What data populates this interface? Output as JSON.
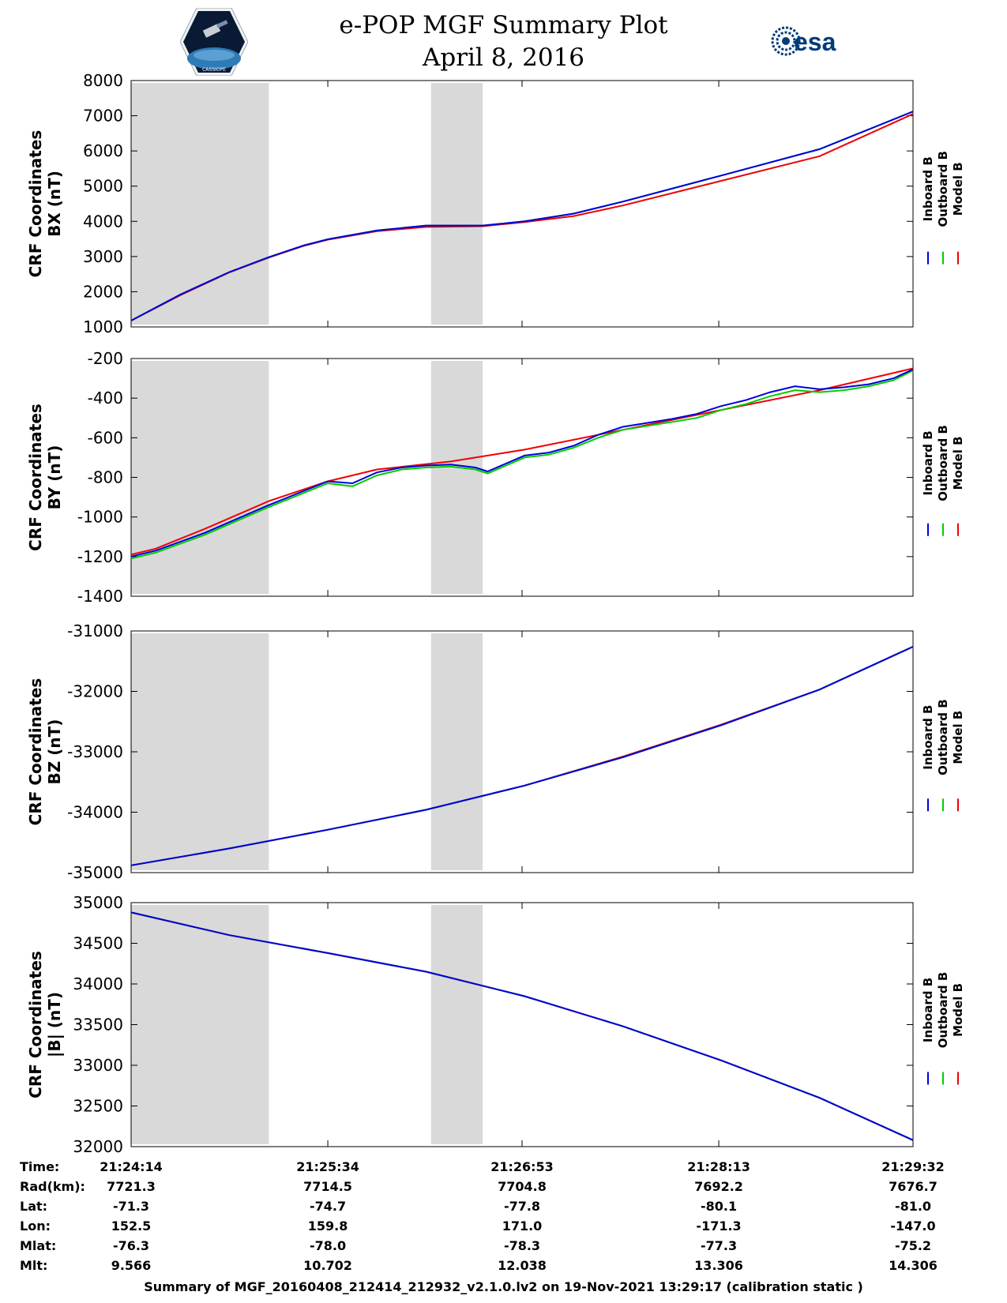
{
  "header": {
    "title": "e-POP MGF Summary Plot",
    "date": "April 8, 2016",
    "esa_logo_text": "esa",
    "mission_logo_text": "CASSIOPE"
  },
  "colors": {
    "inboard": "#0000dd",
    "outboard": "#00cc00",
    "model": "#ee0000",
    "shade": "#d9d9d9"
  },
  "legend": [
    "Inboard B",
    "Outboard B",
    "Model B"
  ],
  "chart_data": [
    {
      "type": "line",
      "ylabel_line1": "CRF Coordinates",
      "ylabel_line2": "BX (nT)",
      "ylim": [
        1000,
        8000
      ],
      "yticks": [
        "1000",
        "2000",
        "3000",
        "4000",
        "5000",
        "6000",
        "7000",
        "8000"
      ],
      "shaded_time_ranges_s": [
        [
          0,
          56
        ],
        [
          122,
          143
        ]
      ],
      "series": [
        {
          "name": "Model B",
          "t": [
            0,
            20,
            40,
            56,
            70,
            80,
            100,
            120,
            143,
            160,
            180,
            200,
            240,
            280,
            318
          ],
          "values": [
            1180,
            1900,
            2550,
            2970,
            3300,
            3480,
            3720,
            3840,
            3860,
            3980,
            4150,
            4450,
            5150,
            5850,
            7050
          ]
        },
        {
          "name": "Outboard B",
          "t": [
            0,
            20,
            40,
            56,
            70,
            80,
            100,
            120,
            143,
            160,
            180,
            200,
            240,
            280,
            318
          ],
          "values": [
            1180,
            1920,
            2560,
            2980,
            3310,
            3490,
            3740,
            3880,
            3880,
            4000,
            4220,
            4560,
            5300,
            6050,
            7120
          ]
        },
        {
          "name": "Inboard B",
          "t": [
            0,
            20,
            40,
            56,
            70,
            80,
            100,
            120,
            143,
            160,
            180,
            200,
            240,
            280,
            318
          ],
          "values": [
            1180,
            1920,
            2560,
            2980,
            3310,
            3490,
            3740,
            3880,
            3880,
            4000,
            4220,
            4560,
            5300,
            6050,
            7120
          ]
        }
      ]
    },
    {
      "type": "line",
      "ylabel_line1": "CRF Coordinates",
      "ylabel_line2": "BY (nT)",
      "ylim": [
        -1400,
        -200
      ],
      "yticks": [
        "-1400",
        "-1200",
        "-1000",
        "-800",
        "-600",
        "-400",
        "-200"
      ],
      "shaded_time_ranges_s": [
        [
          0,
          56
        ],
        [
          122,
          143
        ]
      ],
      "series": [
        {
          "name": "Model B",
          "t": [
            0,
            10,
            30,
            56,
            80,
            100,
            130,
            160,
            200,
            240,
            280,
            318
          ],
          "values": [
            -1190,
            -1160,
            -1060,
            -920,
            -820,
            -760,
            -720,
            -660,
            -560,
            -460,
            -360,
            -250
          ]
        },
        {
          "name": "Outboard B",
          "t": [
            0,
            10,
            30,
            56,
            80,
            90,
            100,
            110,
            120,
            130,
            140,
            145,
            160,
            170,
            180,
            190,
            200,
            210,
            220,
            230,
            240,
            250,
            260,
            270,
            280,
            290,
            300,
            310,
            318
          ],
          "values": [
            -1210,
            -1180,
            -1090,
            -950,
            -830,
            -845,
            -790,
            -760,
            -750,
            -745,
            -760,
            -780,
            -700,
            -685,
            -650,
            -600,
            -560,
            -540,
            -520,
            -500,
            -460,
            -430,
            -390,
            -360,
            -370,
            -360,
            -340,
            -310,
            -260
          ]
        },
        {
          "name": "Inboard B",
          "t": [
            0,
            10,
            30,
            56,
            80,
            90,
            100,
            110,
            120,
            130,
            140,
            145,
            160,
            170,
            180,
            190,
            200,
            210,
            220,
            230,
            240,
            250,
            260,
            270,
            280,
            290,
            300,
            310,
            318
          ],
          "values": [
            -1200,
            -1170,
            -1080,
            -940,
            -820,
            -830,
            -775,
            -750,
            -740,
            -735,
            -750,
            -770,
            -690,
            -675,
            -640,
            -585,
            -545,
            -525,
            -505,
            -480,
            -440,
            -410,
            -370,
            -340,
            -355,
            -345,
            -330,
            -300,
            -255
          ]
        }
      ]
    },
    {
      "type": "line",
      "ylabel_line1": "CRF Coordinates",
      "ylabel_line2": "BZ (nT)",
      "ylim": [
        -35000,
        -31000
      ],
      "yticks": [
        "-35000",
        "-34000",
        "-33000",
        "-32000",
        "-31000"
      ],
      "shaded_time_ranges_s": [
        [
          0,
          56
        ],
        [
          122,
          143
        ]
      ],
      "series": [
        {
          "name": "Model B",
          "t": [
            0,
            40,
            80,
            120,
            160,
            200,
            240,
            280,
            318
          ],
          "values": [
            -34880,
            -34600,
            -34290,
            -33960,
            -33560,
            -33080,
            -32550,
            -31970,
            -31260
          ]
        },
        {
          "name": "Outboard B",
          "t": [
            0,
            40,
            80,
            120,
            160,
            200,
            240,
            280,
            318
          ],
          "values": [
            -34880,
            -34600,
            -34290,
            -33960,
            -33560,
            -33090,
            -32560,
            -31970,
            -31260
          ]
        },
        {
          "name": "Inboard B",
          "t": [
            0,
            40,
            80,
            120,
            160,
            200,
            240,
            280,
            318
          ],
          "values": [
            -34880,
            -34600,
            -34290,
            -33960,
            -33560,
            -33090,
            -32560,
            -31970,
            -31260
          ]
        }
      ]
    },
    {
      "type": "line",
      "ylabel_line1": "CRF Coordinates",
      "ylabel_line2": "|B| (nT)",
      "ylim": [
        32000,
        35000
      ],
      "yticks": [
        "32000",
        "32500",
        "33000",
        "33500",
        "34000",
        "34500",
        "35000"
      ],
      "shaded_time_ranges_s": [
        [
          0,
          56
        ],
        [
          122,
          143
        ]
      ],
      "series": [
        {
          "name": "Model B",
          "t": [
            0,
            40,
            80,
            120,
            160,
            200,
            240,
            280,
            318
          ],
          "values": [
            34880,
            34600,
            34380,
            34150,
            33850,
            33480,
            33060,
            32600,
            32080
          ]
        },
        {
          "name": "Outboard B",
          "t": [
            0,
            40,
            80,
            120,
            160,
            200,
            240,
            280,
            318
          ],
          "values": [
            34880,
            34600,
            34380,
            34150,
            33850,
            33480,
            33060,
            32600,
            32080
          ]
        },
        {
          "name": "Inboard B",
          "t": [
            0,
            40,
            80,
            120,
            160,
            200,
            240,
            280,
            318
          ],
          "values": [
            34880,
            34600,
            34380,
            34150,
            33850,
            33480,
            33060,
            32600,
            32080
          ]
        }
      ]
    }
  ],
  "time_axis": {
    "t_range_s": [
      0,
      318
    ],
    "tick_t_s": [
      0,
      80,
      159,
      239,
      318
    ]
  },
  "ephemeris": {
    "labels": [
      "Time:",
      "Rad(km):",
      "Lat:",
      "Lon:",
      "Mlat:",
      "Mlt:"
    ],
    "rows": [
      [
        "21:24:14",
        "21:25:34",
        "21:26:53",
        "21:28:13",
        "21:29:32"
      ],
      [
        "7721.3",
        "7714.5",
        "7704.8",
        "7692.2",
        "7676.7"
      ],
      [
        "-71.3",
        "-74.7",
        "-77.8",
        "-80.1",
        "-81.0"
      ],
      [
        "152.5",
        "159.8",
        "171.0",
        "-171.3",
        "-147.0"
      ],
      [
        "-76.3",
        "-78.0",
        "-78.3",
        "-77.3",
        "-75.2"
      ],
      [
        "9.566",
        "10.702",
        "12.038",
        "13.306",
        "14.306"
      ]
    ]
  },
  "footer": "Summary of MGF_20160408_212414_212932_v2.1.0.lv2 on 19-Nov-2021 13:29:17 (calibration static )"
}
